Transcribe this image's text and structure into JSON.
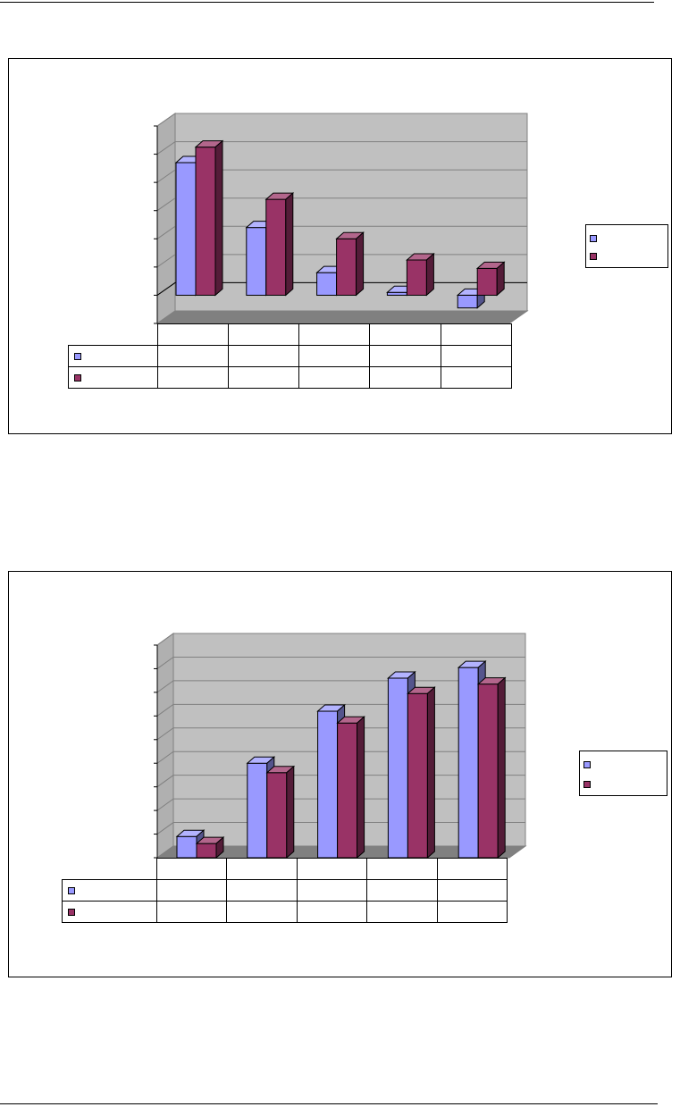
{
  "colors": {
    "series_a": "#9999ff",
    "series_b": "#993366",
    "plot_wall": "#c0c0c0",
    "floor": "#808080"
  },
  "chart_data": [
    {
      "type": "bar",
      "view": "3d-clustered-column",
      "categories": [
        "",
        "",
        "",
        "",
        ""
      ],
      "series": [
        {
          "color": "#9999ff",
          "values": [
            4.7,
            2.4,
            0.8,
            0.1,
            -0.45
          ]
        },
        {
          "color": "#993366",
          "values": [
            5.25,
            3.4,
            2.0,
            1.25,
            0.95
          ]
        }
      ],
      "ylim": [
        -1,
        6
      ],
      "grid": true,
      "legend": "right",
      "data_table": true
    },
    {
      "type": "bar",
      "view": "3d-clustered-column",
      "categories": [
        "",
        "",
        "",
        "",
        ""
      ],
      "series": [
        {
          "color": "#9999ff",
          "values": [
            0.9,
            4.0,
            6.2,
            7.6,
            8.05
          ]
        },
        {
          "color": "#993366",
          "values": [
            0.6,
            3.6,
            5.7,
            6.95,
            7.35
          ]
        }
      ],
      "ylim": [
        0,
        9
      ],
      "grid": true,
      "legend": "right",
      "data_table": true
    }
  ]
}
